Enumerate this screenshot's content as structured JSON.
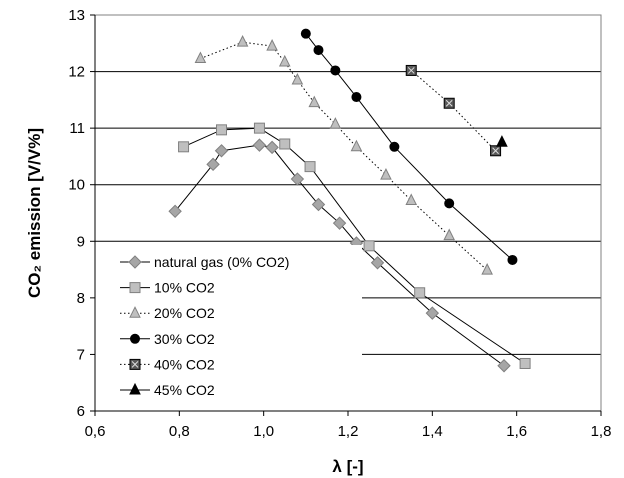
{
  "chart_data": {
    "type": "scatter",
    "xlabel": "λ [-]",
    "ylabel": "CO₂ emission [V/V%]",
    "xlim": [
      0.6,
      1.8
    ],
    "ylim": [
      6,
      13
    ],
    "x_ticks": [
      "0,6",
      "0,8",
      "1,0",
      "1,2",
      "1,4",
      "1,6",
      "1,8"
    ],
    "y_ticks": [
      "6",
      "7",
      "8",
      "9",
      "10",
      "11",
      "12",
      "13"
    ],
    "grid": "horizontal",
    "legend_position": "bottom-left",
    "series": [
      {
        "name": "natural gas (0% CO2)",
        "line": "solid",
        "marker": "diamond",
        "marker_fill": "#a6a6a6",
        "points": [
          [
            0.79,
            9.53
          ],
          [
            0.88,
            10.36
          ],
          [
            0.9,
            10.6
          ],
          [
            0.99,
            10.7
          ],
          [
            1.02,
            10.66
          ],
          [
            1.08,
            10.1
          ],
          [
            1.13,
            9.65
          ],
          [
            1.18,
            9.32
          ],
          [
            1.22,
            8.97
          ],
          [
            1.27,
            8.62
          ],
          [
            1.4,
            7.73
          ],
          [
            1.57,
            6.8
          ]
        ]
      },
      {
        "name": "10% CO2",
        "line": "solid",
        "marker": "square",
        "marker_fill": "#bfbfbf",
        "points": [
          [
            0.81,
            10.67
          ],
          [
            0.9,
            10.97
          ],
          [
            0.99,
            11.0
          ],
          [
            1.05,
            10.72
          ],
          [
            1.11,
            10.32
          ],
          [
            1.25,
            8.92
          ],
          [
            1.37,
            8.09
          ],
          [
            1.62,
            6.84
          ]
        ]
      },
      {
        "name": "20% CO2",
        "line": "dotted",
        "marker": "triangle",
        "marker_fill": "#bfbfbf",
        "points": [
          [
            0.85,
            12.23
          ],
          [
            0.95,
            12.52
          ],
          [
            1.02,
            12.45
          ],
          [
            1.05,
            12.17
          ],
          [
            1.08,
            11.85
          ],
          [
            1.12,
            11.45
          ],
          [
            1.17,
            11.07
          ],
          [
            1.22,
            10.67
          ],
          [
            1.29,
            10.17
          ],
          [
            1.35,
            9.72
          ],
          [
            1.44,
            9.1
          ],
          [
            1.53,
            8.49
          ]
        ]
      },
      {
        "name": "30% CO2",
        "line": "solid",
        "marker": "circle",
        "marker_fill": "#000000",
        "points": [
          [
            1.1,
            12.67
          ],
          [
            1.13,
            12.38
          ],
          [
            1.17,
            12.02
          ],
          [
            1.22,
            11.55
          ],
          [
            1.31,
            10.67
          ],
          [
            1.44,
            9.67
          ],
          [
            1.59,
            8.67
          ]
        ]
      },
      {
        "name": "40% CO2",
        "line": "dotted",
        "marker": "square-x",
        "marker_fill": "#595959",
        "points": [
          [
            1.35,
            12.02
          ],
          [
            1.44,
            11.44
          ],
          [
            1.55,
            10.6
          ]
        ]
      },
      {
        "name": "45% CO2",
        "line": "solid",
        "marker": "triangle",
        "marker_fill": "#000000",
        "points": [
          [
            1.565,
            10.75
          ]
        ]
      }
    ]
  }
}
